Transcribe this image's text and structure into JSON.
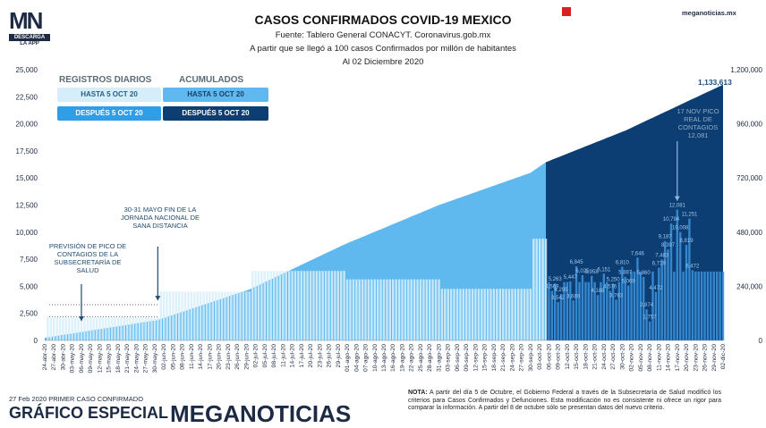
{
  "header": {
    "logo_text": "MN",
    "logo_sub1": "DESCARGA",
    "logo_sub2": "LA APP",
    "title": "CASOS CONFIRMADOS COVID-19 MEXICO",
    "subtitle1": "Fuente: Tablero General CONACYT. Coronavirus.gob.mx",
    "subtitle2": "A partir que se llegó a 100 casos Confirmados por millón de habitantes",
    "subtitle3": "Al 02 Diciembre 2020",
    "site": "meganoticias.mx"
  },
  "legend": {
    "daily_title": "REGISTROS DIARIOS",
    "cumulative_title": "ACUMULADOS",
    "daily_before": "HASTA 5 OCT 20",
    "daily_after": "DESPUÉS 5 OCT 20",
    "cum_before": "HASTA 5 OCT 20",
    "cum_after": "DESPUÉS 5 OCT 20"
  },
  "annotations": {
    "peak_forecast": "PREVISIÓN DE PICO DE CONTAGIOS DE LA SUBSECRETARÍA DE SALUD",
    "end_jornada": "30-31 MAYO FIN DE LA JORNADA NACIONAL DE SANA DISTANCIA",
    "real_peak": "17 NOV PICO REAL DE CONTAGIOS 12,081",
    "final_total": "1,133,613"
  },
  "footer": {
    "first_case": "27 Feb 2020 PRIMER CASO CONFIRMADO",
    "graphic_label": "GRÁFICO ESPECIAL",
    "brand": "MEGANOTICIAS",
    "note_label": "NOTA:",
    "note_text": "A partir del día 5 de Octubre, el Gobierno Federal a través de la Subsecretaría de Salud modificó los criterios para Casos Confirmados y Defunciones. Esta modificación no es consistente ni ofrece un rigor para comparar la información. A partir del 8 de octubre sólo se presentan datos del nuevo criterio."
  },
  "colors": {
    "daily_before": "#d6eefa",
    "daily_after": "#2f78c4",
    "cum_before": "#5fb8ee",
    "cum_after": "#0c3d73",
    "brand_red": "#d82020",
    "navy": "#1c2a44"
  },
  "chart_data": {
    "type": "bar",
    "title": "CASOS CONFIRMADOS COVID-19 MEXICO",
    "left_axis": {
      "ylim": [
        0,
        25000
      ],
      "ticks": [
        "0",
        "2,500",
        "5,000",
        "7,500",
        "10,000",
        "12,500",
        "15,000",
        "17,500",
        "20,000",
        "22,500",
        "25,000"
      ]
    },
    "right_axis": {
      "ylim": [
        0,
        1200000
      ],
      "ticks": [
        "0",
        "240,000",
        "480,000",
        "720,000",
        "960,000",
        "1,200,000"
      ]
    },
    "x_start": "2020-04-24",
    "x_end": "2020-12-02",
    "x_tick_labels": [
      "24-abr-20",
      "27-abr-20",
      "30-abr-20",
      "03-may-20",
      "06-may-20",
      "09-may-20",
      "12-may-20",
      "15-may-20",
      "18-may-20",
      "21-may-20",
      "24-may-20",
      "27-may-20",
      "30-may-20",
      "02-jun-20",
      "05-jun-20",
      "08-jun-20",
      "11-jun-20",
      "14-jun-20",
      "17-jun-20",
      "20-jun-20",
      "23-jun-20",
      "26-jun-20",
      "29-jun-20",
      "02-jul-20",
      "05-jul-20",
      "08-jul-20",
      "11-jul-20",
      "14-jul-20",
      "17-jul-20",
      "20-jul-20",
      "23-jul-20",
      "26-jul-20",
      "29-jul-20",
      "01-ago-20",
      "04-ago-20",
      "07-ago-20",
      "10-ago-20",
      "13-ago-20",
      "16-ago-20",
      "19-ago-20",
      "22-ago-20",
      "25-ago-20",
      "28-ago-20",
      "31-ago-20",
      "03-sep-20",
      "06-sep-20",
      "09-sep-20",
      "12-sep-20",
      "15-sep-20",
      "18-sep-20",
      "21-sep-20",
      "24-sep-20",
      "27-sep-20",
      "30-sep-20",
      "03-oct-20",
      "06-oct-20",
      "09-oct-20",
      "12-oct-20",
      "15-oct-20",
      "18-oct-20",
      "21-oct-20",
      "24-oct-20",
      "27-oct-20",
      "30-oct-20",
      "02-nov-20",
      "05-nov-20",
      "08-nov-20",
      "11-nov-20",
      "14-nov-20",
      "17-nov-20",
      "20-nov-20",
      "23-nov-20",
      "26-nov-20",
      "29-nov-20",
      "02-dic-20"
    ],
    "cumulative": [
      {
        "date": "2020-04-24",
        "value": 11600
      },
      {
        "date": "2020-05-31",
        "value": 90600
      },
      {
        "date": "2020-06-30",
        "value": 226000
      },
      {
        "date": "2020-07-31",
        "value": 425000
      },
      {
        "date": "2020-08-31",
        "value": 600000
      },
      {
        "date": "2020-09-30",
        "value": 743000
      },
      {
        "date": "2020-10-05",
        "value": 790000
      },
      {
        "date": "2020-10-31",
        "value": 930000
      },
      {
        "date": "2020-12-02",
        "value": 1133613
      }
    ],
    "daily_labels": [
      {
        "date": "2020-10-07",
        "value": 4569
      },
      {
        "date": "2020-10-08",
        "value": 5263
      },
      {
        "date": "2020-10-09",
        "value": 3542
      },
      {
        "date": "2020-10-10",
        "value": 4295
      },
      {
        "date": "2020-10-13",
        "value": 5447
      },
      {
        "date": "2020-10-14",
        "value": 3689
      },
      {
        "date": "2020-10-15",
        "value": 6845
      },
      {
        "date": "2020-10-17",
        "value": 6025
      },
      {
        "date": "2020-10-20",
        "value": 5958
      },
      {
        "date": "2020-10-22",
        "value": 4188
      },
      {
        "date": "2020-10-24",
        "value": 6151
      },
      {
        "date": "2020-10-26",
        "value": 4576
      },
      {
        "date": "2020-10-27",
        "value": 5250
      },
      {
        "date": "2020-10-28",
        "value": 3763
      },
      {
        "date": "2020-10-30",
        "value": 6810
      },
      {
        "date": "2020-10-31",
        "value": 5887
      },
      {
        "date": "2020-11-01",
        "value": 5069
      },
      {
        "date": "2020-11-04",
        "value": 7646
      },
      {
        "date": "2020-11-06",
        "value": 5860
      },
      {
        "date": "2020-11-07",
        "value": 2874
      },
      {
        "date": "2020-11-08",
        "value": 1757
      },
      {
        "date": "2020-11-10",
        "value": 4472
      },
      {
        "date": "2020-11-11",
        "value": 6719
      },
      {
        "date": "2020-11-12",
        "value": 7483
      },
      {
        "date": "2020-11-13",
        "value": 9187
      },
      {
        "date": "2020-11-14",
        "value": 8397
      },
      {
        "date": "2020-11-15",
        "value": 10794
      },
      {
        "date": "2020-11-17",
        "value": 12081
      },
      {
        "date": "2020-11-18",
        "value": 10008
      },
      {
        "date": "2020-11-20",
        "value": 8819
      },
      {
        "date": "2020-11-21",
        "value": 11251
      },
      {
        "date": "2020-11-22",
        "value": 6472
      }
    ],
    "change_date": "2020-10-05",
    "peak_forecast_date": "2020-05-06",
    "jornada_end_date": "2020-05-31",
    "real_peak_date": "2020-11-17"
  }
}
